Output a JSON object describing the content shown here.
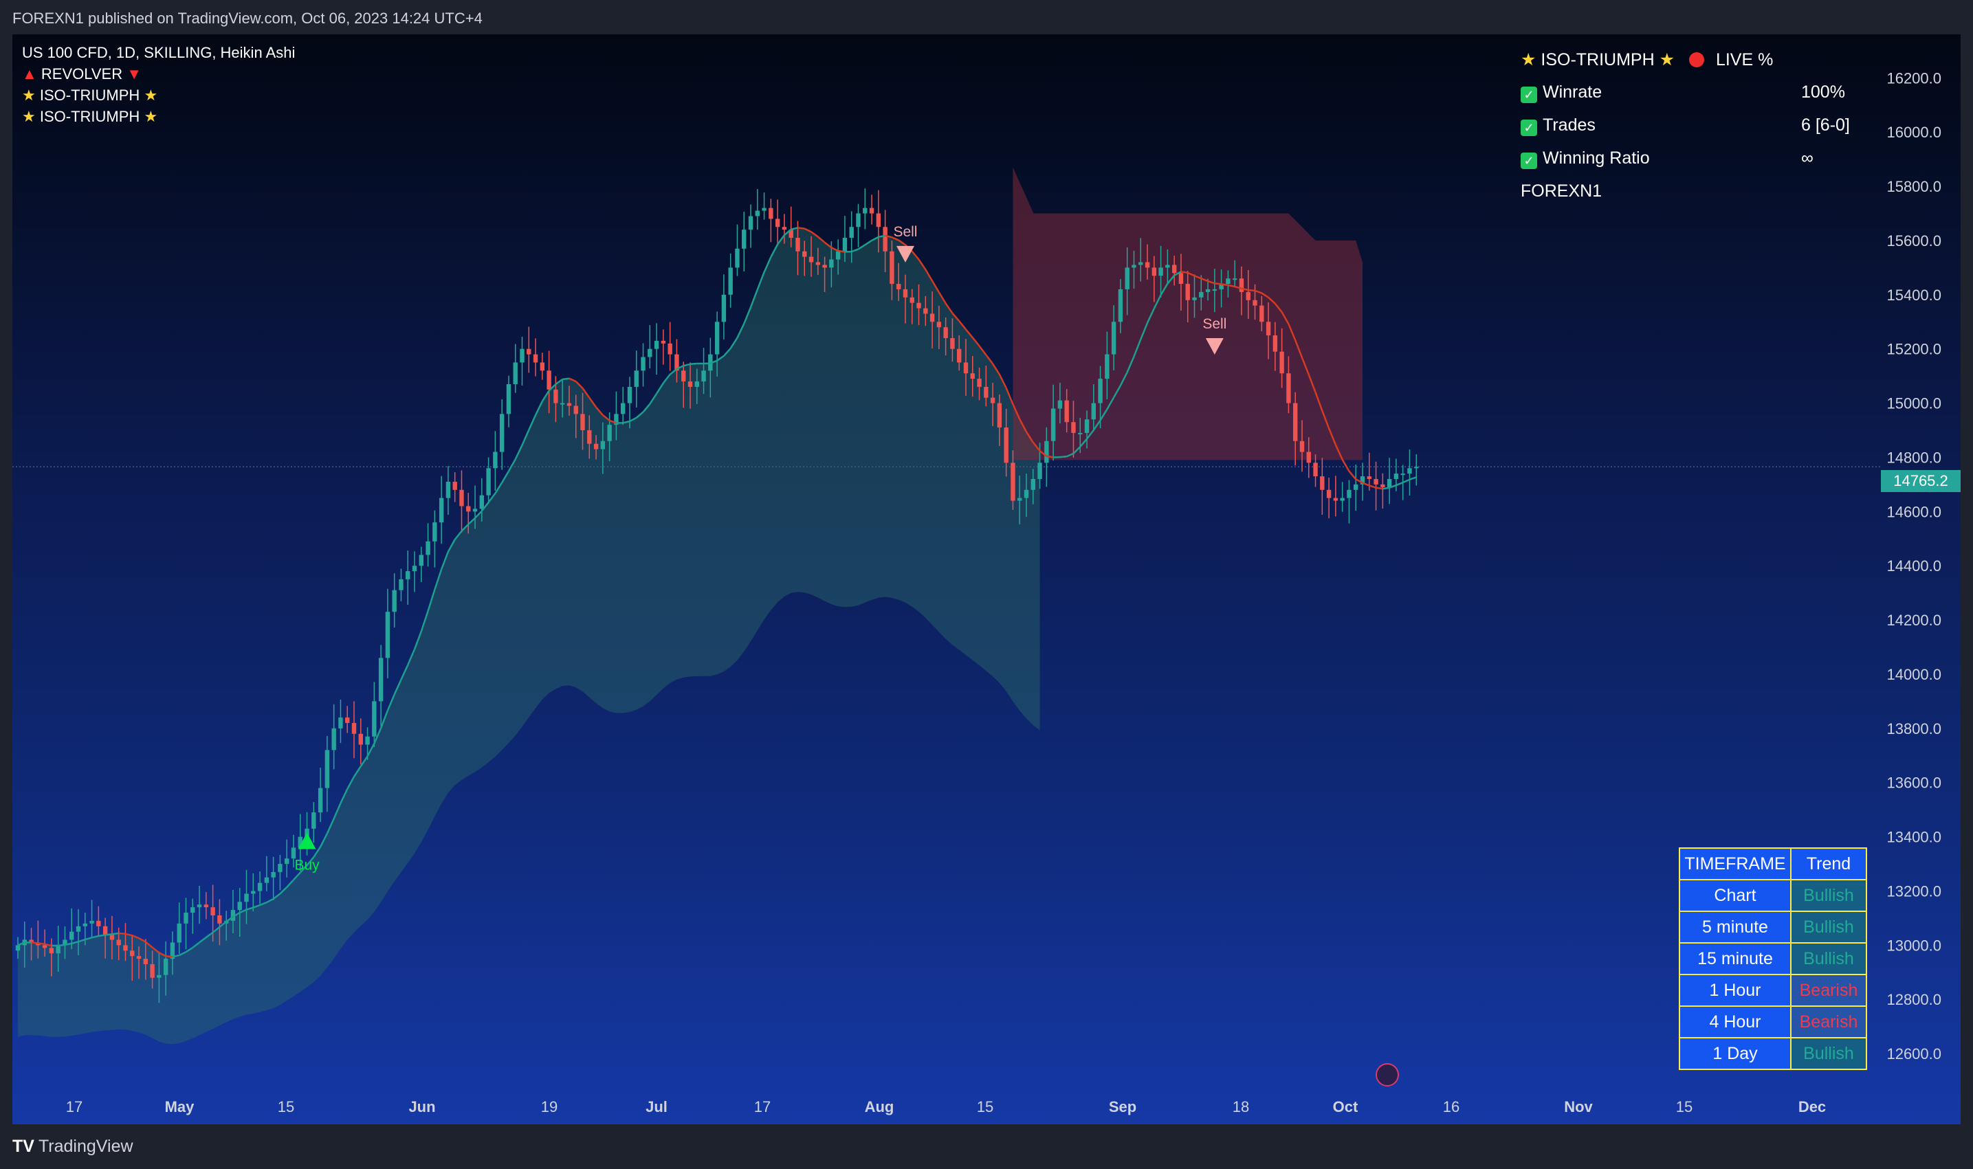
{
  "publisher_line": "FOREXN1 published on TradingView.com, Oct 06, 2023 14:24 UTC+4",
  "legend": {
    "symbol": "US 100 CFD, 1D, SKILLING, Heikin Ashi",
    "indicator1": "REVOLVER",
    "indicator2": "ISO-TRIUMPH",
    "indicator3": "ISO-TRIUMPH"
  },
  "stats": {
    "title": "ISO-TRIUMPH",
    "live_label": "LIVE %",
    "rows": [
      {
        "label": "Winrate",
        "value": "100%"
      },
      {
        "label": "Trades",
        "value": "6 [6-0]"
      },
      {
        "label": "Winning Ratio",
        "value": "∞"
      }
    ],
    "brand": "FOREXN1"
  },
  "trend_table": {
    "header_tf": "TIMEFRAME",
    "header_trend": "Trend",
    "rows": [
      {
        "tf": "Chart",
        "trend": "Bullish"
      },
      {
        "tf": "5 minute",
        "trend": "Bullish"
      },
      {
        "tf": "15 minute",
        "trend": "Bullish"
      },
      {
        "tf": "1 Hour",
        "trend": "Bearish"
      },
      {
        "tf": "4 Hour",
        "trend": "Bearish"
      },
      {
        "tf": "1 Day",
        "trend": "Bullish"
      }
    ]
  },
  "last_price": "14765.2",
  "footer_brand": "TradingView",
  "colors": {
    "bull": "#26a69a",
    "bear": "#ef5350",
    "buy_signal": "#00e64d",
    "sell_signal": "#f8a5a5",
    "ma_bull": "#1e9e8e",
    "ma_bear": "#d63a22"
  },
  "chart_data": {
    "type": "candlestick",
    "yticks": [
      12600,
      12800,
      13000,
      13200,
      13400,
      13600,
      13800,
      14000,
      14200,
      14400,
      14600,
      14800,
      15000,
      15200,
      15400,
      15600,
      15800,
      16000,
      16200
    ],
    "ylim": [
      12400,
      16320
    ],
    "xtick_labels": [
      "17",
      "May",
      "15",
      "Jun",
      "19",
      "Jul",
      "17",
      "Aug",
      "15",
      "Sep",
      "18",
      "Oct",
      "16",
      "Nov",
      "15",
      "Dec"
    ],
    "annotations": [
      {
        "label": "Buy",
        "kind": "buy",
        "date_index": 43,
        "price": 13380
      },
      {
        "label": "Sell",
        "kind": "sell",
        "date_index": 132,
        "price": 15580
      },
      {
        "label": "Sell",
        "kind": "sell",
        "date_index": 178,
        "price": 15240
      }
    ],
    "closes": [
      13000,
      13020,
      13010,
      13000,
      12990,
      12970,
      13000,
      13020,
      13050,
      13070,
      13080,
      13090,
      13070,
      13040,
      13020,
      13000,
      12980,
      12960,
      12950,
      12930,
      12880,
      12890,
      12950,
      13010,
      13080,
      13120,
      13140,
      13150,
      13140,
      13110,
      13080,
      13090,
      13130,
      13160,
      13190,
      13200,
      13230,
      13250,
      13270,
      13300,
      13320,
      13360,
      13400,
      13430,
      13490,
      13580,
      13720,
      13800,
      13840,
      13820,
      13780,
      13740,
      13770,
      13900,
      14060,
      14230,
      14310,
      14350,
      14380,
      14400,
      14440,
      14490,
      14560,
      14650,
      14710,
      14680,
      14620,
      14600,
      14610,
      14660,
      14760,
      14820,
      14960,
      15070,
      15150,
      15200,
      15180,
      15150,
      15120,
      15050,
      15000,
      15000,
      14990,
      14960,
      14900,
      14850,
      14830,
      14860,
      14920,
      14960,
      15000,
      15060,
      15120,
      15170,
      15200,
      15230,
      15220,
      15180,
      15120,
      15080,
      15060,
      15080,
      15120,
      15180,
      15300,
      15400,
      15500,
      15570,
      15640,
      15690,
      15710,
      15720,
      15680,
      15650,
      15640,
      15610,
      15560,
      15540,
      15520,
      15510,
      15500,
      15530,
      15560,
      15610,
      15650,
      15700,
      15720,
      15700,
      15650,
      15560,
      15440,
      15420,
      15390,
      15370,
      15350,
      15330,
      15300,
      15280,
      15240,
      15200,
      15150,
      15110,
      15090,
      15060,
      15020,
      15000,
      14910,
      14780,
      14640,
      14650,
      14680,
      14720,
      14780,
      14860,
      14980,
      15010,
      14930,
      14890,
      14890,
      14940,
      15000,
      15090,
      15180,
      15300,
      15420,
      15500,
      15510,
      15520,
      15500,
      15470,
      15500,
      15510,
      15480,
      15440,
      15380,
      15390,
      15410,
      15420,
      15420,
      15440,
      15460,
      15460,
      15410,
      15380,
      15360,
      15300,
      15250,
      15190,
      15110,
      15000,
      14860,
      14820,
      14780,
      14730,
      14680,
      14650,
      14640,
      14650,
      14680,
      14700,
      14730,
      14720,
      14700,
      14690,
      14720,
      14740,
      14740,
      14760,
      14765
    ]
  }
}
